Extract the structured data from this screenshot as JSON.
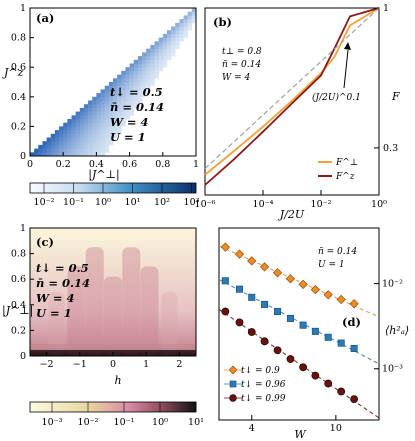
{
  "colors": {
    "blue_dark": "#08306b",
    "blue_mid": "#3a85c1",
    "blue_light": "#deebf7",
    "orange": "#f4a038",
    "darkred": "#8c1a1a",
    "dashed": "#a0a0a0",
    "series_orange": "#f08a24",
    "series_blue": "#2a7ab7",
    "series_red": "#6b0f0f",
    "heat_low": "#fbf8d8",
    "heat_mid": "#d98aa0",
    "heat_high": "#1a0a0a"
  },
  "panel_a": {
    "label": "(a)",
    "ylabel": "J^z",
    "xlabel": "|J^⊥|",
    "xticks": [
      "0",
      "0.2",
      "0.4",
      "0.6",
      "0.8",
      "1"
    ],
    "yticks": [
      "0",
      "0.2",
      "0.4",
      "0.6",
      "0.8",
      "1"
    ],
    "params": [
      "t↓ = 0.5",
      "n̄ = 0.14",
      "W = 4",
      "U = 1"
    ],
    "colorbar_ticks": [
      "10⁻²",
      "10⁻¹",
      "10⁰",
      "10¹",
      "10²",
      "10³"
    ]
  },
  "panel_b": {
    "label": "(b)",
    "params": [
      "t⊥ = 0.8",
      "n̄ = 0.14",
      "W = 4"
    ],
    "annotation": "(J/2U)^0.1",
    "xlabel": "J/2U",
    "ylabel": "F",
    "xticks": [
      "10⁻⁶",
      "10⁻⁴",
      "10⁻²",
      "10⁰"
    ],
    "yticks": [
      "1",
      "0.3"
    ],
    "legend": [
      "F^⊥",
      "F^z"
    ]
  },
  "panel_c": {
    "label": "(c)",
    "ylabel": "|J^⊥|",
    "xlabel": "h",
    "xticks": [
      "−2",
      "−1",
      "0",
      "1",
      "2"
    ],
    "yticks": [
      "0",
      "0.2",
      "0.4",
      "0.6",
      "0.8",
      "1"
    ],
    "params": [
      "t↓ = 0.5",
      "n̄ = 0.14",
      "W = 4",
      "U = 1"
    ],
    "colorbar_ticks": [
      "10⁻³",
      "10⁻²",
      "10⁻¹",
      "10⁰",
      "10¹"
    ]
  },
  "panel_d": {
    "label": "(d)",
    "params": [
      "n̄ = 0.14",
      "U = 1"
    ],
    "xlabel": "W",
    "ylabel": "⟨h²ₐ⟩",
    "xticks": [
      "4",
      "10"
    ],
    "yticks": [
      "10⁻²",
      "10⁻³"
    ],
    "legend": [
      "t↓ = 0.9",
      "t↓ = 0.96",
      "t↓ = 0.99"
    ]
  },
  "chart_data": [
    {
      "type": "heatmap",
      "panel": "a",
      "xlabel": "|J^⊥|",
      "ylabel": "J^z",
      "xlim": [
        0,
        1
      ],
      "ylim": [
        0,
        1
      ],
      "description_values": "density concentrated near diagonal J^z ≈ |J^⊥|, highest near origin",
      "colorbar_range": [
        0.01,
        1000
      ],
      "colorbar_scale": "log"
    },
    {
      "type": "line",
      "panel": "b",
      "xlabel": "J/2U",
      "ylabel": "F",
      "xscale": "log",
      "yscale": "log",
      "xlim": [
        1e-06,
        1
      ],
      "ylim": [
        0.2,
        1
      ],
      "series": [
        {
          "name": "F^⊥",
          "x": [
            1e-06,
            1e-05,
            0.0001,
            0.001,
            0.01,
            0.03,
            0.1,
            1
          ],
          "y": [
            0.238,
            0.292,
            0.36,
            0.45,
            0.57,
            0.66,
            0.86,
            1.0
          ]
        },
        {
          "name": "F^z",
          "x": [
            1e-06,
            1e-05,
            0.0001,
            0.001,
            0.01,
            0.03,
            0.1,
            1
          ],
          "y": [
            0.218,
            0.272,
            0.345,
            0.44,
            0.56,
            0.71,
            0.93,
            1.0
          ]
        },
        {
          "name": "(J/2U)^0.1",
          "x": [
            1e-06,
            0.0001,
            0.01,
            1
          ],
          "y": [
            0.251,
            0.398,
            0.631,
            1.0
          ]
        }
      ]
    },
    {
      "type": "heatmap",
      "panel": "c",
      "xlabel": "h",
      "ylabel": "|J^⊥|",
      "xlim": [
        -2.5,
        2.5
      ],
      "ylim": [
        0,
        1
      ],
      "colorbar_range": [
        0.001,
        10
      ],
      "colorbar_scale": "log"
    },
    {
      "type": "scatter",
      "panel": "d",
      "xlabel": "W",
      "ylabel": "⟨h²ₐ⟩",
      "xscale": "log",
      "yscale": "log",
      "xlim": [
        2.8,
        16
      ],
      "ylim": [
        0.00025,
        0.045
      ],
      "series": [
        {
          "name": "t↓ = 0.9",
          "x": [
            3,
            3.5,
            4,
            4.6,
            5.3,
            6.1,
            7,
            8,
            9.2,
            10.6,
            12.2
          ],
          "y": [
            0.0268,
            0.0222,
            0.0185,
            0.0157,
            0.0134,
            0.0114,
            0.0098,
            0.0085,
            0.0074,
            0.0065,
            0.0058
          ]
        },
        {
          "name": "t↓ = 0.96",
          "x": [
            3,
            3.5,
            4,
            4.6,
            5.3,
            6.1,
            7,
            8,
            9.2,
            10.6,
            12.2
          ],
          "y": [
            0.0108,
            0.0086,
            0.0069,
            0.0057,
            0.0047,
            0.0039,
            0.00325,
            0.00275,
            0.00234,
            0.002,
            0.00173
          ]
        },
        {
          "name": "t↓ = 0.99",
          "x": [
            3,
            3.5,
            4,
            4.6,
            5.3,
            6.1,
            7,
            8,
            9.2,
            10.6,
            12.2
          ],
          "y": [
            0.0047,
            0.0035,
            0.0027,
            0.0021,
            0.00165,
            0.0013,
            0.00104,
            0.00083,
            0.00067,
            0.00054,
            0.00044
          ]
        }
      ]
    }
  ]
}
